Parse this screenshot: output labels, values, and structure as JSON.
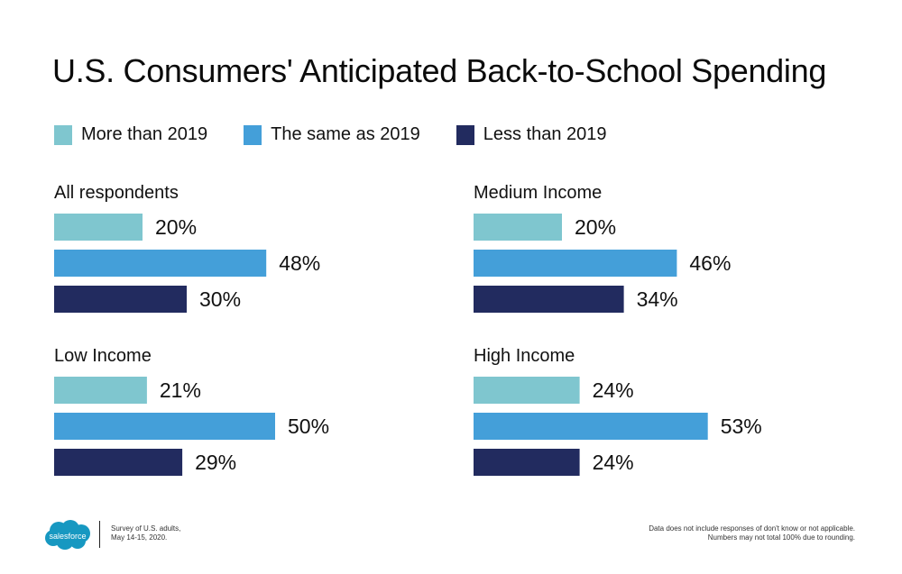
{
  "chart_data": {
    "type": "bar",
    "orientation": "horizontal",
    "title": "U.S. Consumers' Anticipated Back-to-School Spending",
    "legend": [
      {
        "name": "More than 2019",
        "color": "#7fc6cf"
      },
      {
        "name": "The same as 2019",
        "color": "#449fd9"
      },
      {
        "name": "Less than 2019",
        "color": "#222b5f"
      }
    ],
    "legend_position": "top-left",
    "xlim": [
      0,
      100
    ],
    "grid": false,
    "value_suffix": "%",
    "panels": [
      {
        "title": "All respondents",
        "values": [
          20,
          48,
          30
        ]
      },
      {
        "title": "Medium Income",
        "values": [
          20,
          46,
          34
        ]
      },
      {
        "title": "Low Income",
        "values": [
          21,
          50,
          29
        ]
      },
      {
        "title": "High Income",
        "values": [
          24,
          53,
          24
        ]
      }
    ]
  },
  "footer": {
    "logo_text": "salesforce",
    "logo_color": "#1798c1",
    "note_left": [
      "Survey of U.S. adults,",
      "May 14-15, 2020."
    ],
    "note_right": [
      "Data does not include responses of don't know or not applicable.",
      "Numbers may not total 100% due to rounding."
    ]
  }
}
